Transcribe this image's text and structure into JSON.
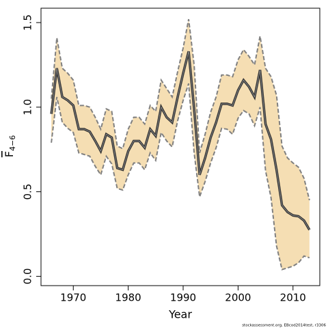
{
  "chart_data": {
    "type": "line",
    "xlabel": "Year",
    "ylabel": "F",
    "ylabel_subscript": "4−6",
    "footnote": "stockassessment.org, EBcod2014test, r3306",
    "x": [
      1966,
      1967,
      1968,
      1969,
      1970,
      1971,
      1972,
      1973,
      1974,
      1975,
      1976,
      1977,
      1978,
      1979,
      1980,
      1981,
      1982,
      1983,
      1984,
      1985,
      1986,
      1987,
      1988,
      1989,
      1990,
      1991,
      1992,
      1993,
      1994,
      1995,
      1996,
      1997,
      1998,
      1999,
      2000,
      2001,
      2002,
      2003,
      2004,
      2005,
      2006,
      2007,
      2008,
      2009,
      2010,
      2011,
      2012,
      2013
    ],
    "values": [
      0.96,
      1.23,
      1.06,
      1.04,
      1.01,
      0.87,
      0.87,
      0.855,
      0.8,
      0.74,
      0.84,
      0.82,
      0.64,
      0.63,
      0.74,
      0.8,
      0.8,
      0.76,
      0.87,
      0.83,
      1.0,
      0.94,
      0.91,
      1.06,
      1.2,
      1.33,
      0.99,
      0.6,
      0.7,
      0.82,
      0.91,
      1.02,
      1.02,
      1.01,
      1.1,
      1.16,
      1.12,
      1.06,
      1.22,
      0.9,
      0.81,
      0.63,
      0.42,
      0.38,
      0.36,
      0.355,
      0.33,
      0.275
    ],
    "upper": [
      1.05,
      1.41,
      1.23,
      1.2,
      1.16,
      1.01,
      1.01,
      1.0,
      0.94,
      0.87,
      0.99,
      0.975,
      0.77,
      0.755,
      0.87,
      0.94,
      0.94,
      0.9,
      1.01,
      0.975,
      1.16,
      1.11,
      1.06,
      1.21,
      1.35,
      1.52,
      1.25,
      0.73,
      0.84,
      0.97,
      1.06,
      1.19,
      1.19,
      1.18,
      1.28,
      1.34,
      1.3,
      1.25,
      1.42,
      1.23,
      1.18,
      1.07,
      0.77,
      0.7,
      0.67,
      0.645,
      0.58,
      0.45
    ],
    "lower": [
      0.79,
      1.06,
      0.91,
      0.875,
      0.85,
      0.73,
      0.72,
      0.71,
      0.65,
      0.6,
      0.71,
      0.665,
      0.52,
      0.51,
      0.6,
      0.67,
      0.67,
      0.63,
      0.73,
      0.685,
      0.85,
      0.8,
      0.765,
      0.92,
      1.04,
      1.14,
      0.73,
      0.47,
      0.56,
      0.67,
      0.76,
      0.875,
      0.87,
      0.84,
      0.935,
      0.98,
      0.96,
      0.89,
      1.0,
      0.625,
      0.465,
      0.18,
      0.04,
      0.05,
      0.06,
      0.08,
      0.12,
      0.11
    ],
    "color": "#333333",
    "band_color": "#f5deb3",
    "band_edge_color": "#808080",
    "xlim": [
      1964.12,
      2014.88
    ],
    "ylim": [
      -0.055,
      1.585
    ],
    "xticks": [
      1970,
      1980,
      1990,
      2000,
      2010
    ],
    "yticks": [
      {
        "value": 0,
        "label": "0.0"
      },
      0.5,
      {
        "value": 1,
        "label": "1.0"
      },
      1.5
    ]
  }
}
